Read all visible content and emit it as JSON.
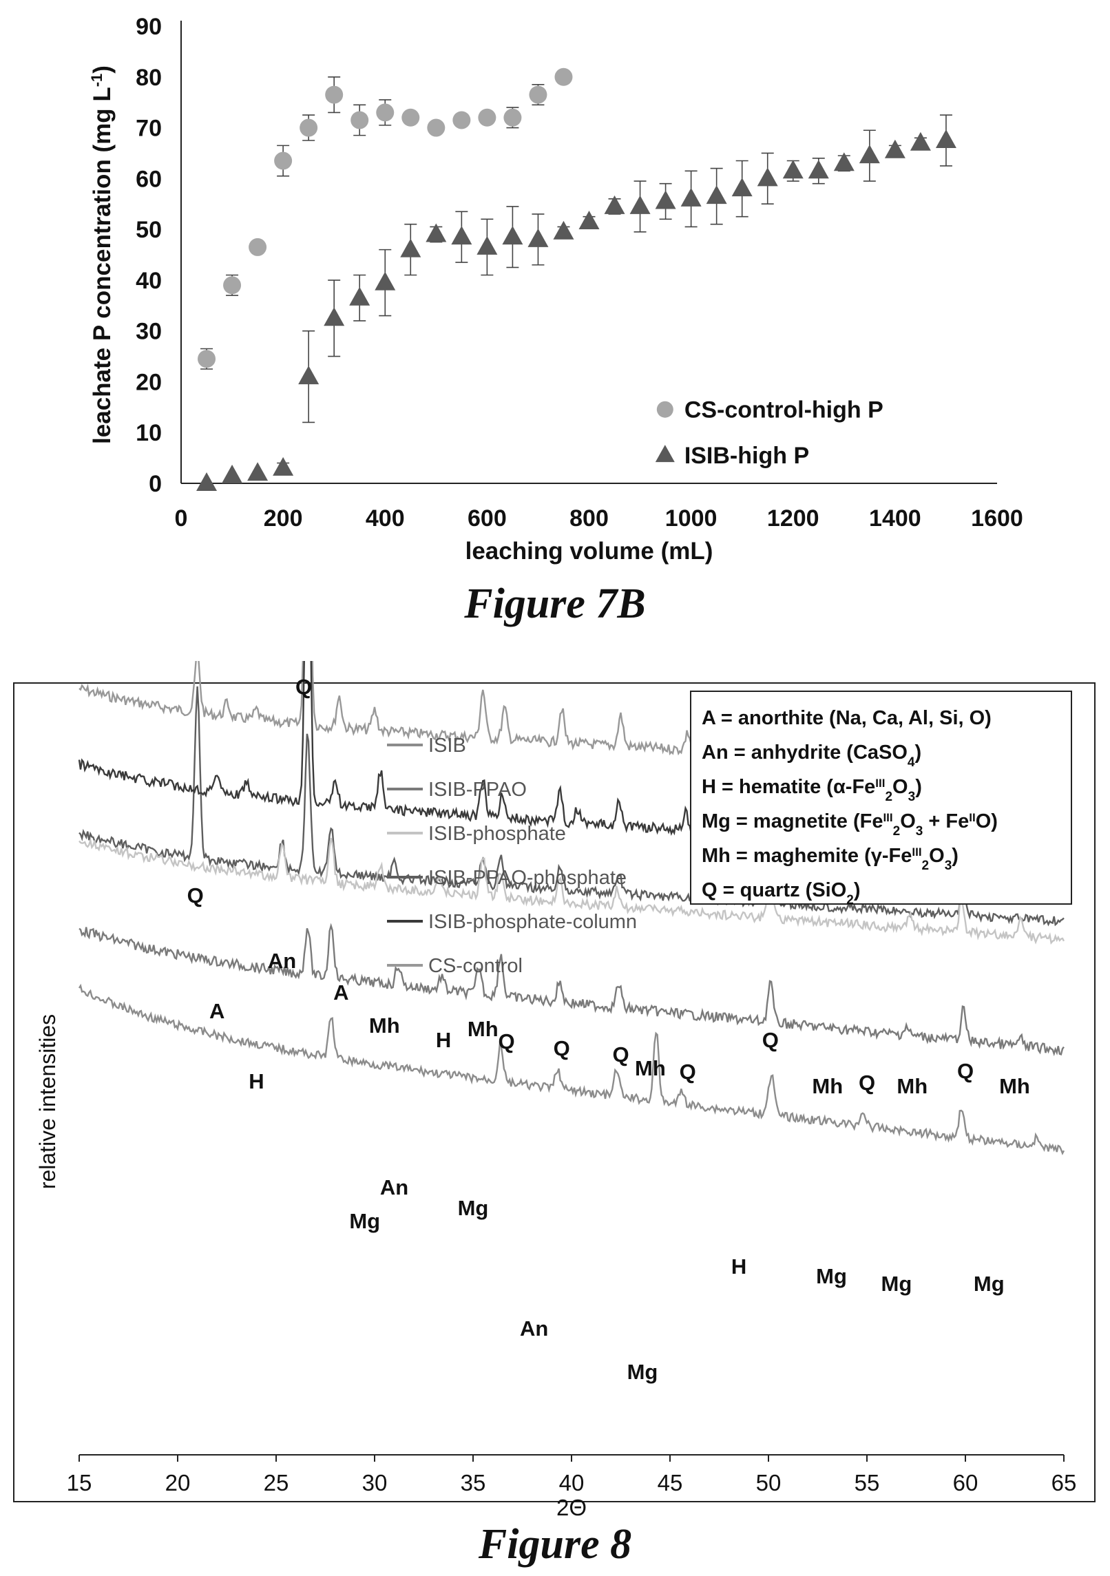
{
  "chart_data": [
    {
      "type": "scatter",
      "xlabel": "leaching volume (mL)",
      "ylabel": "leachate P concentration (mg L-1)",
      "xlim": [
        0,
        1600
      ],
      "ylim": [
        0,
        90
      ],
      "xticks": [
        0,
        200,
        400,
        600,
        800,
        1000,
        1200,
        1400,
        1600
      ],
      "yticks": [
        0,
        10,
        20,
        30,
        40,
        50,
        60,
        70,
        80,
        90
      ],
      "grid": false,
      "legend_position": "bottom-right",
      "series": [
        {
          "name": "CS-control-high P",
          "marker": "circle",
          "color": "#a6a6a6",
          "x": [
            50,
            100,
            150,
            200,
            250,
            300,
            350,
            400,
            450,
            500,
            550,
            600,
            650,
            700,
            750
          ],
          "y": [
            24.5,
            39,
            46.5,
            63.5,
            70,
            76.5,
            71.5,
            73,
            72,
            70,
            71.5,
            72,
            72,
            76.5,
            80
          ],
          "err": [
            2,
            2,
            1,
            3,
            2.5,
            3.5,
            3,
            2.5,
            1,
            1,
            1,
            1,
            2,
            2,
            0.5
          ]
        },
        {
          "name": "ISIB-high P",
          "marker": "triangle",
          "color": "#595959",
          "x": [
            50,
            100,
            150,
            200,
            250,
            300,
            350,
            400,
            450,
            500,
            550,
            600,
            650,
            700,
            750,
            800,
            850,
            900,
            950,
            1000,
            1050,
            1100,
            1150,
            1200,
            1250,
            1300,
            1350,
            1400,
            1450,
            1500
          ],
          "y": [
            0,
            1.5,
            2,
            3,
            21,
            32.5,
            36.5,
            39.5,
            46,
            49,
            48.5,
            46.5,
            48.5,
            48,
            49.5,
            51.5,
            54.5,
            54.5,
            55.5,
            56,
            56.5,
            58,
            60,
            61.5,
            61.5,
            63,
            64.5,
            65.5,
            67,
            67.5
          ],
          "err": [
            0,
            0,
            0,
            1,
            9,
            7.5,
            4.5,
            6.5,
            5,
            1.5,
            5,
            5.5,
            6,
            5,
            1,
            1,
            1.5,
            5,
            3.5,
            5.5,
            5.5,
            5.5,
            5,
            2,
            2.5,
            1.5,
            5,
            1,
            1,
            5
          ]
        }
      ]
    },
    {
      "type": "line",
      "xlabel": "2Θ",
      "ylabel": "relative intensities",
      "xlim": [
        15,
        65
      ],
      "xticks": [
        15,
        20,
        25,
        30,
        35,
        40,
        45,
        50,
        55,
        60,
        65
      ],
      "grid": false,
      "legend_position": "top-center",
      "series": [
        {
          "name": "ISIB",
          "color": "#8c8c8c"
        },
        {
          "name": "ISIB-PPAO",
          "color": "#7a7a7a"
        },
        {
          "name": "ISIB-phosphate",
          "color": "#c4c4c4"
        },
        {
          "name": "ISIB-PPAO-phosphate",
          "color": "#5e5e5e"
        },
        {
          "name": "ISIB-phosphate-column",
          "color": "#3a3a3a"
        },
        {
          "name": "CS-control",
          "color": "#989898"
        }
      ],
      "peak_labels": [
        {
          "text": "Q",
          "x": 26.4
        },
        {
          "text": "Q",
          "x": 20.9
        },
        {
          "text": "An",
          "x": 25.3
        },
        {
          "text": "A",
          "x": 28.3
        },
        {
          "text": "Mh",
          "x": 30.5
        },
        {
          "text": "Mh",
          "x": 35.5
        },
        {
          "text": "H",
          "x": 33.5
        },
        {
          "text": "Q",
          "x": 36.7
        },
        {
          "text": "Q",
          "x": 39.5
        },
        {
          "text": "Q",
          "x": 42.5
        },
        {
          "text": "Mh",
          "x": 44
        },
        {
          "text": "Q",
          "x": 45.9
        },
        {
          "text": "Q",
          "x": 50.1
        },
        {
          "text": "Mh",
          "x": 53
        },
        {
          "text": "Q",
          "x": 55
        },
        {
          "text": "Mh",
          "x": 57.3
        },
        {
          "text": "Q",
          "x": 60
        },
        {
          "text": "Mh",
          "x": 62.5
        },
        {
          "text": "A",
          "x": 22
        },
        {
          "text": "H",
          "x": 24
        },
        {
          "text": "An",
          "x": 31
        },
        {
          "text": "Mg",
          "x": 35
        },
        {
          "text": "Mg",
          "x": 29.5
        },
        {
          "text": "H",
          "x": 48.5
        },
        {
          "text": "Mg",
          "x": 53.2
        },
        {
          "text": "Mg",
          "x": 56.5
        },
        {
          "text": "Mg",
          "x": 61.2
        },
        {
          "text": "An",
          "x": 38.1
        },
        {
          "text": "Mg",
          "x": 43.6
        }
      ],
      "key_lines": [
        "A = anorthite (Na, Ca, Al, Si, O)",
        "An = anhydrite (CaSO4)",
        "H = hematite (α-FeIII2O3)",
        "Mg = magnetite (FeIII2O3 + FeIIO)",
        "Mh = maghemite (γ-FeIII2O3)",
        "Q = quartz (SiO2)"
      ]
    }
  ],
  "captions": {
    "fig7b": "Figure 7B",
    "fig8": "Figure 8"
  }
}
